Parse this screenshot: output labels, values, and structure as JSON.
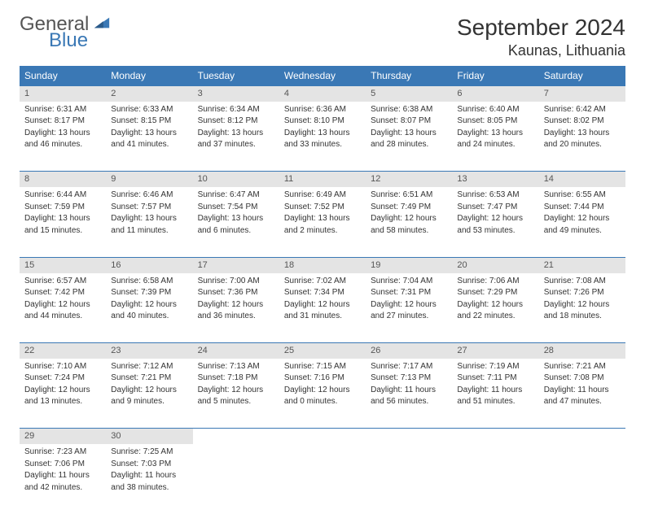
{
  "logo": {
    "text1": "General",
    "text2": "Blue",
    "color1": "#555555",
    "color2": "#3a78b5"
  },
  "title": "September 2024",
  "location": "Kaunas, Lithuania",
  "header_bg": "#3a78b5",
  "daynum_bg": "#e4e4e4",
  "days_of_week": [
    "Sunday",
    "Monday",
    "Tuesday",
    "Wednesday",
    "Thursday",
    "Friday",
    "Saturday"
  ],
  "cells": [
    {
      "n": "1",
      "sr": "Sunrise: 6:31 AM",
      "ss": "Sunset: 8:17 PM",
      "d1": "Daylight: 13 hours",
      "d2": "and 46 minutes."
    },
    {
      "n": "2",
      "sr": "Sunrise: 6:33 AM",
      "ss": "Sunset: 8:15 PM",
      "d1": "Daylight: 13 hours",
      "d2": "and 41 minutes."
    },
    {
      "n": "3",
      "sr": "Sunrise: 6:34 AM",
      "ss": "Sunset: 8:12 PM",
      "d1": "Daylight: 13 hours",
      "d2": "and 37 minutes."
    },
    {
      "n": "4",
      "sr": "Sunrise: 6:36 AM",
      "ss": "Sunset: 8:10 PM",
      "d1": "Daylight: 13 hours",
      "d2": "and 33 minutes."
    },
    {
      "n": "5",
      "sr": "Sunrise: 6:38 AM",
      "ss": "Sunset: 8:07 PM",
      "d1": "Daylight: 13 hours",
      "d2": "and 28 minutes."
    },
    {
      "n": "6",
      "sr": "Sunrise: 6:40 AM",
      "ss": "Sunset: 8:05 PM",
      "d1": "Daylight: 13 hours",
      "d2": "and 24 minutes."
    },
    {
      "n": "7",
      "sr": "Sunrise: 6:42 AM",
      "ss": "Sunset: 8:02 PM",
      "d1": "Daylight: 13 hours",
      "d2": "and 20 minutes."
    },
    {
      "n": "8",
      "sr": "Sunrise: 6:44 AM",
      "ss": "Sunset: 7:59 PM",
      "d1": "Daylight: 13 hours",
      "d2": "and 15 minutes."
    },
    {
      "n": "9",
      "sr": "Sunrise: 6:46 AM",
      "ss": "Sunset: 7:57 PM",
      "d1": "Daylight: 13 hours",
      "d2": "and 11 minutes."
    },
    {
      "n": "10",
      "sr": "Sunrise: 6:47 AM",
      "ss": "Sunset: 7:54 PM",
      "d1": "Daylight: 13 hours",
      "d2": "and 6 minutes."
    },
    {
      "n": "11",
      "sr": "Sunrise: 6:49 AM",
      "ss": "Sunset: 7:52 PM",
      "d1": "Daylight: 13 hours",
      "d2": "and 2 minutes."
    },
    {
      "n": "12",
      "sr": "Sunrise: 6:51 AM",
      "ss": "Sunset: 7:49 PM",
      "d1": "Daylight: 12 hours",
      "d2": "and 58 minutes."
    },
    {
      "n": "13",
      "sr": "Sunrise: 6:53 AM",
      "ss": "Sunset: 7:47 PM",
      "d1": "Daylight: 12 hours",
      "d2": "and 53 minutes."
    },
    {
      "n": "14",
      "sr": "Sunrise: 6:55 AM",
      "ss": "Sunset: 7:44 PM",
      "d1": "Daylight: 12 hours",
      "d2": "and 49 minutes."
    },
    {
      "n": "15",
      "sr": "Sunrise: 6:57 AM",
      "ss": "Sunset: 7:42 PM",
      "d1": "Daylight: 12 hours",
      "d2": "and 44 minutes."
    },
    {
      "n": "16",
      "sr": "Sunrise: 6:58 AM",
      "ss": "Sunset: 7:39 PM",
      "d1": "Daylight: 12 hours",
      "d2": "and 40 minutes."
    },
    {
      "n": "17",
      "sr": "Sunrise: 7:00 AM",
      "ss": "Sunset: 7:36 PM",
      "d1": "Daylight: 12 hours",
      "d2": "and 36 minutes."
    },
    {
      "n": "18",
      "sr": "Sunrise: 7:02 AM",
      "ss": "Sunset: 7:34 PM",
      "d1": "Daylight: 12 hours",
      "d2": "and 31 minutes."
    },
    {
      "n": "19",
      "sr": "Sunrise: 7:04 AM",
      "ss": "Sunset: 7:31 PM",
      "d1": "Daylight: 12 hours",
      "d2": "and 27 minutes."
    },
    {
      "n": "20",
      "sr": "Sunrise: 7:06 AM",
      "ss": "Sunset: 7:29 PM",
      "d1": "Daylight: 12 hours",
      "d2": "and 22 minutes."
    },
    {
      "n": "21",
      "sr": "Sunrise: 7:08 AM",
      "ss": "Sunset: 7:26 PM",
      "d1": "Daylight: 12 hours",
      "d2": "and 18 minutes."
    },
    {
      "n": "22",
      "sr": "Sunrise: 7:10 AM",
      "ss": "Sunset: 7:24 PM",
      "d1": "Daylight: 12 hours",
      "d2": "and 13 minutes."
    },
    {
      "n": "23",
      "sr": "Sunrise: 7:12 AM",
      "ss": "Sunset: 7:21 PM",
      "d1": "Daylight: 12 hours",
      "d2": "and 9 minutes."
    },
    {
      "n": "24",
      "sr": "Sunrise: 7:13 AM",
      "ss": "Sunset: 7:18 PM",
      "d1": "Daylight: 12 hours",
      "d2": "and 5 minutes."
    },
    {
      "n": "25",
      "sr": "Sunrise: 7:15 AM",
      "ss": "Sunset: 7:16 PM",
      "d1": "Daylight: 12 hours",
      "d2": "and 0 minutes."
    },
    {
      "n": "26",
      "sr": "Sunrise: 7:17 AM",
      "ss": "Sunset: 7:13 PM",
      "d1": "Daylight: 11 hours",
      "d2": "and 56 minutes."
    },
    {
      "n": "27",
      "sr": "Sunrise: 7:19 AM",
      "ss": "Sunset: 7:11 PM",
      "d1": "Daylight: 11 hours",
      "d2": "and 51 minutes."
    },
    {
      "n": "28",
      "sr": "Sunrise: 7:21 AM",
      "ss": "Sunset: 7:08 PM",
      "d1": "Daylight: 11 hours",
      "d2": "and 47 minutes."
    },
    {
      "n": "29",
      "sr": "Sunrise: 7:23 AM",
      "ss": "Sunset: 7:06 PM",
      "d1": "Daylight: 11 hours",
      "d2": "and 42 minutes."
    },
    {
      "n": "30",
      "sr": "Sunrise: 7:25 AM",
      "ss": "Sunset: 7:03 PM",
      "d1": "Daylight: 11 hours",
      "d2": "and 38 minutes."
    }
  ],
  "last_row_blanks": 5
}
